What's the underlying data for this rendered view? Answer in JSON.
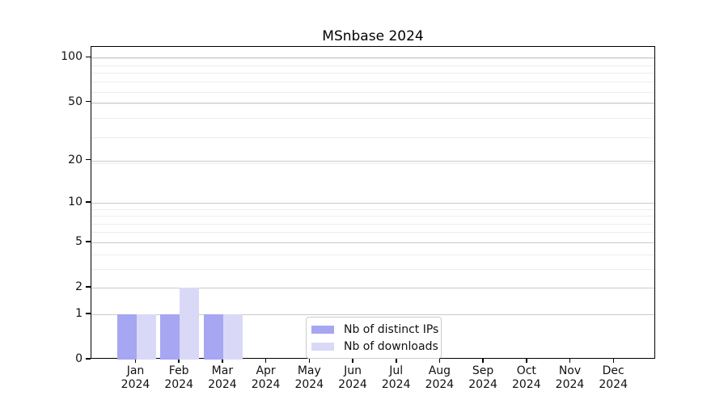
{
  "figure": {
    "title": "MSnbase 2024",
    "background": "#ffffff"
  },
  "legend": {
    "items": [
      {
        "label": "Nb of distinct IPs",
        "color": "#a6a6f2"
      },
      {
        "label": "Nb of downloads",
        "color": "#d9d9f7"
      }
    ]
  },
  "chart_data": {
    "type": "bar",
    "title": "MSnbase 2024",
    "categories": [
      "Jan",
      "Feb",
      "Mar",
      "Apr",
      "May",
      "Jun",
      "Jul",
      "Aug",
      "Sep",
      "Oct",
      "Nov",
      "Dec"
    ],
    "year_label": "2024",
    "series": [
      {
        "name": "Nb of distinct IPs",
        "color": "#a6a6f2",
        "values": [
          1,
          1,
          1,
          0,
          0,
          0,
          0,
          0,
          0,
          0,
          0,
          0
        ]
      },
      {
        "name": "Nb of downloads",
        "color": "#d9d9f7",
        "values": [
          1,
          2,
          1,
          0,
          0,
          0,
          0,
          0,
          0,
          0,
          0,
          0
        ]
      }
    ],
    "xlabel": "",
    "ylabel": "",
    "yscale": "log1p",
    "ylim": [
      0,
      118
    ],
    "yticks": [
      0,
      1,
      2,
      5,
      10,
      20,
      50,
      100
    ],
    "minor_gridlines": [
      3,
      4,
      6,
      7,
      8,
      9,
      19,
      29,
      39,
      49,
      59,
      69,
      79,
      89,
      99
    ],
    "grid": true,
    "legend_position": "inside-bottom-center",
    "colors": {
      "major_grid": "#c9c9c9",
      "minor_grid": "#ececec",
      "axis": "#000000",
      "tick_label": "#111111"
    }
  }
}
